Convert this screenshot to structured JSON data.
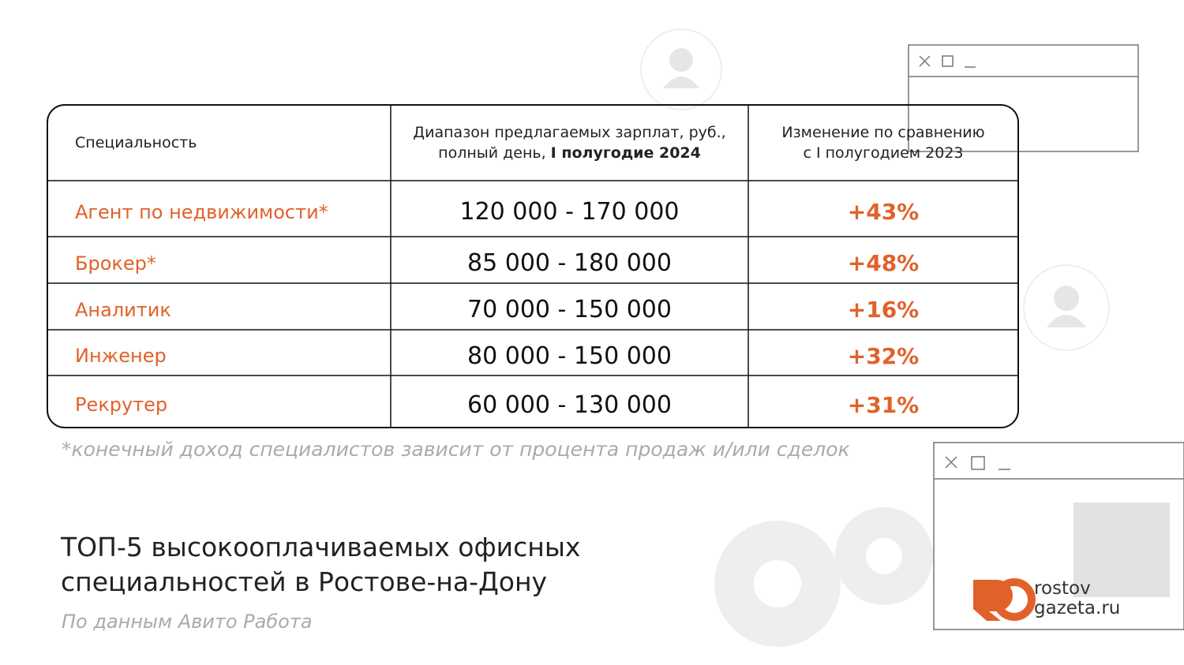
{
  "table": {
    "header": [
      "Специальность",
      {
        "text": "Диапазон предлагаемых зарплат, руб., полный день, ",
        "bold": "I полугодие 2024"
      },
      [
        "Изменение по сравнению",
        "с I полугодием 2023"
      ]
    ],
    "rows": [
      [
        "Агент по недвижимости*",
        "120 000 - 170 000",
        "+43%"
      ],
      [
        "Брокер*",
        "85 000 - 180 000",
        "+48%"
      ],
      [
        "Аналитик",
        "70 000 - 150 000",
        "+16%"
      ],
      [
        "Инженер",
        "80 000 - 150 000",
        "+32%"
      ],
      [
        "Рекрутер",
        "60 000 - 130 000",
        "+31%"
      ]
    ]
  },
  "footnote": "*конечный доход специалистов зависит от процента продаж и/или сделок",
  "title": [
    "ТОП-5 высокооплачиваемых офисных",
    "специальностей в Ростове-на-Дону"
  ],
  "source": "По данным Авито Работа",
  "logo": [
    "rostov",
    "gazeta.ru"
  ]
}
